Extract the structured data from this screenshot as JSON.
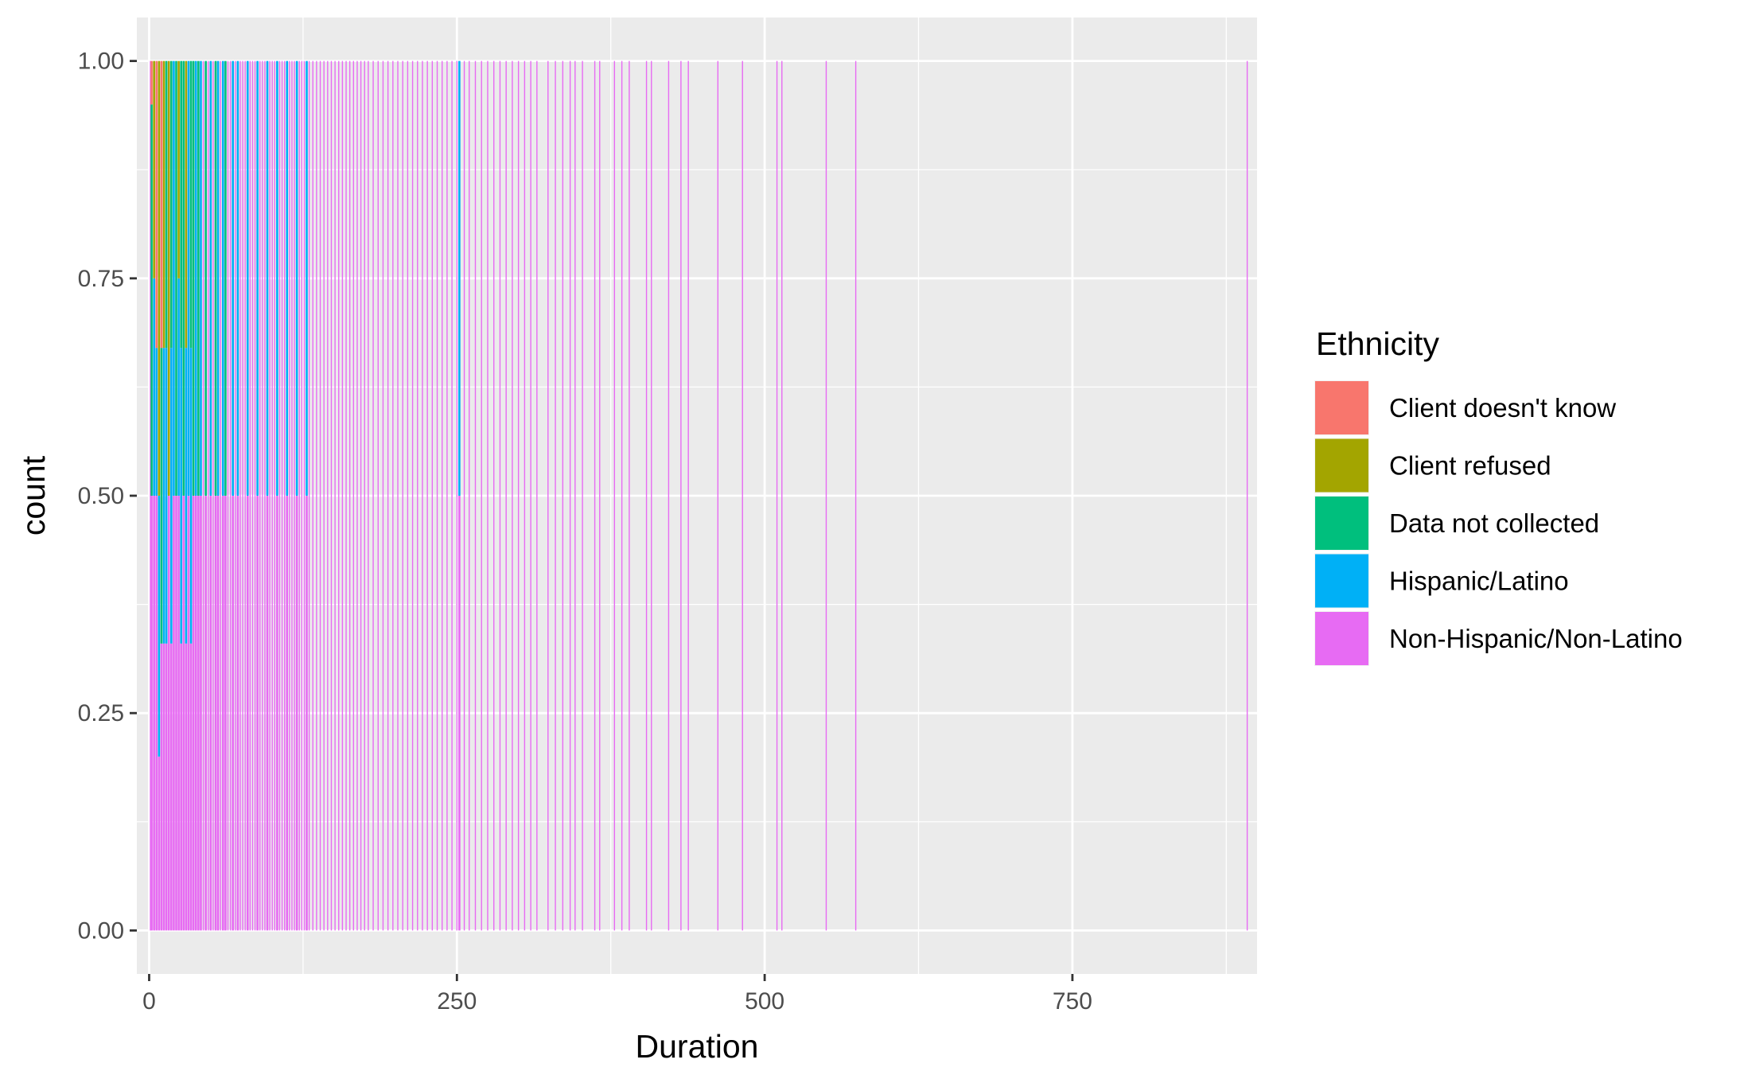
{
  "chart_data": {
    "type": "bar",
    "variant": "stacked proportion (filled) histogram",
    "xlabel": "Duration",
    "ylabel": "count",
    "xlim": [
      -10,
      900
    ],
    "ylim": [
      -0.05,
      1.05
    ],
    "x_ticks": [
      0,
      250,
      500,
      750
    ],
    "x_tick_labels": [
      "0",
      "250",
      "500",
      "750"
    ],
    "y_ticks": [
      0,
      0.25,
      0.5,
      0.75,
      1
    ],
    "y_tick_labels": [
      "0.00",
      "0.25",
      "0.50",
      "0.75",
      "1.00"
    ],
    "grid": true,
    "legend": {
      "title": "Ethnicity",
      "position": "right",
      "entries": [
        {
          "label": "Client doesn't know",
          "color": "#F8766D"
        },
        {
          "label": "Client refused",
          "color": "#A3A500"
        },
        {
          "label": "Data not collected",
          "color": "#00BF7D"
        },
        {
          "label": "Hispanic/Latino",
          "color": "#00B0F6"
        },
        {
          "label": "Non-Hispanic/Non-Latino",
          "color": "#E76BF3"
        }
      ]
    },
    "bins": [
      {
        "x": 2,
        "segments": [
          {
            "c": "Client doesn't know",
            "v": 0.05
          },
          {
            "c": "Data not collected",
            "v": 0.45
          },
          {
            "c": "Non-Hispanic/Non-Latino",
            "v": 0.5
          }
        ]
      },
      {
        "x": 4,
        "segments": [
          {
            "c": "Client refused",
            "v": 0.25
          },
          {
            "c": "Hispanic/Latino",
            "v": 0.25
          },
          {
            "c": "Non-Hispanic/Non-Latino",
            "v": 0.5
          }
        ]
      },
      {
        "x": 6,
        "segments": [
          {
            "c": "Client doesn't know",
            "v": 0.33
          },
          {
            "c": "Hispanic/Latino",
            "v": 0.17
          },
          {
            "c": "Non-Hispanic/Non-Latino",
            "v": 0.5
          }
        ]
      },
      {
        "x": 8,
        "segments": [
          {
            "c": "Client refused",
            "v": 0.5
          },
          {
            "c": "Hispanic/Latino",
            "v": 0.3
          },
          {
            "c": "Non-Hispanic/Non-Latino",
            "v": 0.2
          }
        ]
      },
      {
        "x": 10,
        "segments": [
          {
            "c": "Client doesn't know",
            "v": 0.33
          },
          {
            "c": "Data not collected",
            "v": 0.34
          },
          {
            "c": "Non-Hispanic/Non-Latino",
            "v": 0.33
          }
        ]
      },
      {
        "x": 12,
        "segments": [
          {
            "c": "Client refused",
            "v": 0.33
          },
          {
            "c": "Hispanic/Latino",
            "v": 0.34
          },
          {
            "c": "Non-Hispanic/Non-Latino",
            "v": 0.33
          }
        ]
      },
      {
        "x": 14,
        "segments": [
          {
            "c": "Data not collected",
            "v": 0.33
          },
          {
            "c": "Hispanic/Latino",
            "v": 0.34
          },
          {
            "c": "Non-Hispanic/Non-Latino",
            "v": 0.33
          }
        ]
      },
      {
        "x": 16,
        "segments": [
          {
            "c": "Client refused",
            "v": 0.5
          },
          {
            "c": "Non-Hispanic/Non-Latino",
            "v": 0.5
          }
        ]
      },
      {
        "x": 18,
        "segments": [
          {
            "c": "Data not collected",
            "v": 0.33
          },
          {
            "c": "Hispanic/Latino",
            "v": 0.34
          },
          {
            "c": "Non-Hispanic/Non-Latino",
            "v": 0.33
          }
        ]
      },
      {
        "x": 20,
        "segments": [
          {
            "c": "Hispanic/Latino",
            "v": 0.5
          },
          {
            "c": "Non-Hispanic/Non-Latino",
            "v": 0.5
          }
        ]
      },
      {
        "x": 22,
        "segments": [
          {
            "c": "Data not collected",
            "v": 0.5
          },
          {
            "c": "Non-Hispanic/Non-Latino",
            "v": 0.5
          }
        ]
      },
      {
        "x": 24,
        "segments": [
          {
            "c": "Client refused",
            "v": 0.25
          },
          {
            "c": "Hispanic/Latino",
            "v": 0.25
          },
          {
            "c": "Non-Hispanic/Non-Latino",
            "v": 0.5
          }
        ]
      },
      {
        "x": 26,
        "segments": [
          {
            "c": "Data not collected",
            "v": 0.33
          },
          {
            "c": "Hispanic/Latino",
            "v": 0.34
          },
          {
            "c": "Non-Hispanic/Non-Latino",
            "v": 0.33
          }
        ]
      },
      {
        "x": 28,
        "segments": [
          {
            "c": "Data not collected",
            "v": 0.5
          },
          {
            "c": "Non-Hispanic/Non-Latino",
            "v": 0.5
          }
        ]
      },
      {
        "x": 30,
        "segments": [
          {
            "c": "Client refused",
            "v": 0.33
          },
          {
            "c": "Hispanic/Latino",
            "v": 0.34
          },
          {
            "c": "Non-Hispanic/Non-Latino",
            "v": 0.33
          }
        ]
      },
      {
        "x": 32,
        "segments": [
          {
            "c": "Hispanic/Latino",
            "v": 0.5
          },
          {
            "c": "Non-Hispanic/Non-Latino",
            "v": 0.5
          }
        ]
      },
      {
        "x": 34,
        "segments": [
          {
            "c": "Data not collected",
            "v": 0.33
          },
          {
            "c": "Hispanic/Latino",
            "v": 0.34
          },
          {
            "c": "Non-Hispanic/Non-Latino",
            "v": 0.33
          }
        ]
      },
      {
        "x": 36,
        "segments": [
          {
            "c": "Data not collected",
            "v": 0.5
          },
          {
            "c": "Non-Hispanic/Non-Latino",
            "v": 0.5
          }
        ]
      },
      {
        "x": 38,
        "segments": [
          {
            "c": "Hispanic/Latino",
            "v": 0.5
          },
          {
            "c": "Non-Hispanic/Non-Latino",
            "v": 0.5
          }
        ]
      },
      {
        "x": 40,
        "segments": [
          {
            "c": "Data not collected",
            "v": 0.5
          },
          {
            "c": "Non-Hispanic/Non-Latino",
            "v": 0.5
          }
        ]
      },
      {
        "x": 42,
        "segments": [
          {
            "c": "Hispanic/Latino",
            "v": 0.5
          },
          {
            "c": "Non-Hispanic/Non-Latino",
            "v": 0.5
          }
        ]
      },
      {
        "x": 46,
        "segments": [
          {
            "c": "Data not collected",
            "v": 0.5
          },
          {
            "c": "Non-Hispanic/Non-Latino",
            "v": 0.5
          }
        ]
      },
      {
        "x": 50,
        "segments": [
          {
            "c": "Hispanic/Latino",
            "v": 0.5
          },
          {
            "c": "Non-Hispanic/Non-Latino",
            "v": 0.5
          }
        ]
      },
      {
        "x": 54,
        "segments": [
          {
            "c": "Data not collected",
            "v": 0.5
          },
          {
            "c": "Non-Hispanic/Non-Latino",
            "v": 0.5
          }
        ]
      },
      {
        "x": 56,
        "segments": [
          {
            "c": "Hispanic/Latino",
            "v": 0.5
          },
          {
            "c": "Non-Hispanic/Non-Latino",
            "v": 0.5
          }
        ]
      },
      {
        "x": 60,
        "segments": [
          {
            "c": "Hispanic/Latino",
            "v": 0.5
          },
          {
            "c": "Non-Hispanic/Non-Latino",
            "v": 0.5
          }
        ]
      },
      {
        "x": 62,
        "segments": [
          {
            "c": "Data not collected",
            "v": 0.5
          },
          {
            "c": "Non-Hispanic/Non-Latino",
            "v": 0.5
          }
        ]
      },
      {
        "x": 68,
        "segments": [
          {
            "c": "Hispanic/Latino",
            "v": 0.5
          },
          {
            "c": "Non-Hispanic/Non-Latino",
            "v": 0.5
          }
        ]
      },
      {
        "x": 72,
        "segments": [
          {
            "c": "Hispanic/Latino",
            "v": 0.5
          },
          {
            "c": "Non-Hispanic/Non-Latino",
            "v": 0.5
          }
        ]
      },
      {
        "x": 80,
        "segments": [
          {
            "c": "Hispanic/Latino",
            "v": 0.5
          },
          {
            "c": "Non-Hispanic/Non-Latino",
            "v": 0.5
          }
        ]
      },
      {
        "x": 88,
        "segments": [
          {
            "c": "Hispanic/Latino",
            "v": 0.5
          },
          {
            "c": "Non-Hispanic/Non-Latino",
            "v": 0.5
          }
        ]
      },
      {
        "x": 96,
        "segments": [
          {
            "c": "Hispanic/Latino",
            "v": 0.5
          },
          {
            "c": "Non-Hispanic/Non-Latino",
            "v": 0.5
          }
        ]
      },
      {
        "x": 104,
        "segments": [
          {
            "c": "Hispanic/Latino",
            "v": 0.5
          },
          {
            "c": "Non-Hispanic/Non-Latino",
            "v": 0.5
          }
        ]
      },
      {
        "x": 112,
        "segments": [
          {
            "c": "Hispanic/Latino",
            "v": 0.5
          },
          {
            "c": "Non-Hispanic/Non-Latino",
            "v": 0.5
          }
        ]
      },
      {
        "x": 120,
        "segments": [
          {
            "c": "Hispanic/Latino",
            "v": 0.5
          },
          {
            "c": "Non-Hispanic/Non-Latino",
            "v": 0.5
          }
        ]
      },
      {
        "x": 128,
        "segments": [
          {
            "c": "Hispanic/Latino",
            "v": 0.5
          },
          {
            "c": "Non-Hispanic/Non-Latino",
            "v": 0.5
          }
        ]
      },
      {
        "x": 252,
        "segments": [
          {
            "c": "Hispanic/Latino",
            "v": 0.5
          },
          {
            "c": "Non-Hispanic/Non-Latino",
            "v": 0.5
          }
        ]
      }
    ],
    "single_category_bins": {
      "category": "Non-Hispanic/Non-Latino",
      "value": 1,
      "x": [
        1,
        44,
        48,
        52,
        58,
        64,
        66,
        70,
        74,
        76,
        78,
        82,
        84,
        86,
        90,
        92,
        94,
        98,
        100,
        102,
        106,
        108,
        110,
        114,
        116,
        118,
        122,
        124,
        126,
        130,
        133,
        136,
        139,
        142,
        145,
        148,
        151,
        154,
        157,
        160,
        163,
        166,
        169,
        172,
        175,
        178,
        182,
        186,
        190,
        194,
        198,
        202,
        206,
        210,
        214,
        218,
        222,
        226,
        230,
        234,
        238,
        242,
        246,
        250,
        256,
        260,
        265,
        270,
        275,
        280,
        285,
        290,
        295,
        300,
        305,
        310,
        315,
        324,
        330,
        336,
        342,
        346,
        352,
        362,
        366,
        378,
        384,
        390,
        404,
        408,
        422,
        432,
        438,
        462,
        482,
        510,
        514,
        550,
        574,
        892
      ]
    }
  }
}
